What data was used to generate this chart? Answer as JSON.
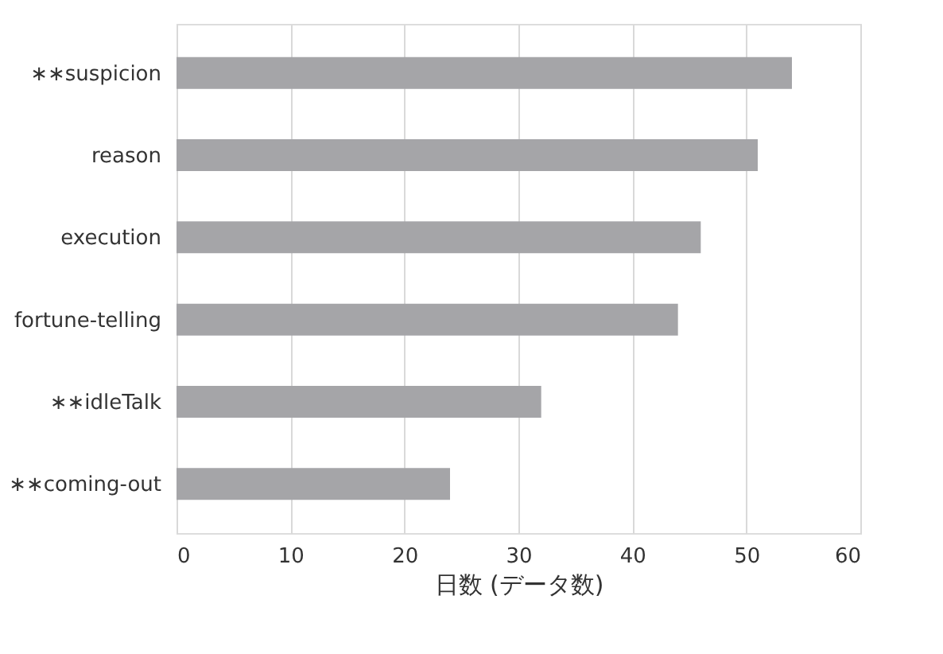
{
  "chart_data": {
    "type": "bar",
    "orientation": "horizontal",
    "xlabel": "日数 (データ数)",
    "categories": [
      "∗∗suspicion",
      "reason",
      "execution",
      "fortune-telling",
      "∗∗idleTalk",
      "∗∗coming-out"
    ],
    "values": [
      54,
      51,
      46,
      44,
      32,
      24
    ],
    "color": "#a5a5a8",
    "xlim": [
      0,
      60
    ],
    "xticks": [
      0,
      10,
      20,
      30,
      40,
      50,
      60
    ],
    "grid": "x"
  }
}
